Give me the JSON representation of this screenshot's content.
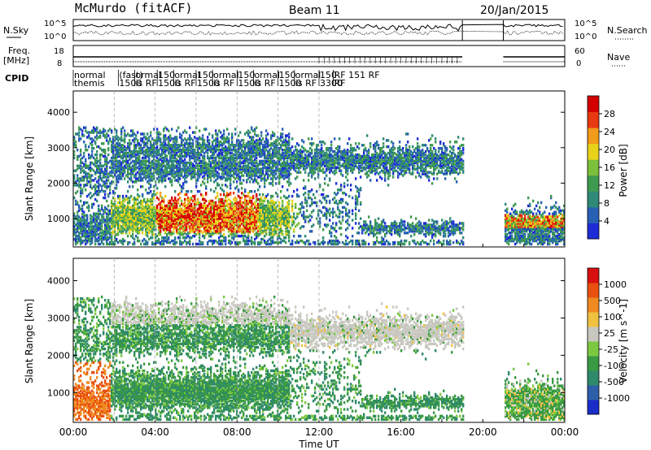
{
  "header": {
    "station": "McMurdo (fitACF)",
    "beam": "Beam 11",
    "date": "20/Jan/2015"
  },
  "top_panels": {
    "nsky_label": "N.Sky",
    "nsky_ticks_left": [
      "10^5",
      "10^0"
    ],
    "nsky_ticks_right": [
      "10^5",
      "10^0"
    ],
    "nsearch_label": "N.Search",
    "freq_label_line1": "Freq.",
    "freq_label_line2": "[MHz]",
    "freq_ticks": [
      "18",
      "8"
    ],
    "nave_label": "Nave",
    "nave_ticks": [
      "60",
      "0"
    ],
    "cpid_label": "CPID",
    "cpid_entries": [
      {
        "t": 0.0,
        "line1": "normal",
        "line2": "themis"
      },
      {
        "t": 2.2,
        "line1": "(fast)",
        "line2": "1500"
      },
      {
        "t": 3.0,
        "line1": "ormal",
        "line2": "is RF"
      },
      {
        "t": 4.1,
        "line1": "150",
        "line2": "1500"
      },
      {
        "t": 4.9,
        "line1": "ormal",
        "line2": "is RF"
      },
      {
        "t": 6.0,
        "line1": "150",
        "line2": "1500"
      },
      {
        "t": 6.8,
        "line1": "ormal",
        "line2": "is RF"
      },
      {
        "t": 8.0,
        "line1": "150",
        "line2": "1500"
      },
      {
        "t": 8.8,
        "line1": "ormal",
        "line2": "is RF"
      },
      {
        "t": 10.0,
        "line1": "150",
        "line2": "1500"
      },
      {
        "t": 10.8,
        "line1": "ormal",
        "line2": "is RF"
      },
      {
        "t": 12.0,
        "line1": "150",
        "line2": "3300"
      },
      {
        "t": 12.7,
        "line1": "RF  151  RF",
        "line2": "RF"
      }
    ]
  },
  "chart_data": [
    {
      "type": "heatmap",
      "title": "Power",
      "ylabel": "Slant Range [km]",
      "ylim": [
        200,
        4600
      ],
      "yticks": [
        "1000",
        "2000",
        "3000",
        "4000"
      ],
      "colorbar_label": "Power [dB]",
      "colorbar_ticks": [
        "4",
        "8",
        "12",
        "16",
        "20",
        "24",
        "28"
      ],
      "colors": [
        "#1e2bd6",
        "#2860b4",
        "#2f8a78",
        "#3f9a4f",
        "#7cbf3a",
        "#e8d21a",
        "#f29a1a",
        "#e83a12",
        "#d40000"
      ],
      "regions": [
        {
          "t0": 0.0,
          "t1": 1.8,
          "r0": 350,
          "r1": 3500,
          "level": "mixed"
        },
        {
          "t0": 1.8,
          "t1": 10.5,
          "r0": 350,
          "r1": 3500,
          "level": "strong"
        },
        {
          "t0": 10.5,
          "t1": 19.0,
          "r0": 600,
          "r1": 3200,
          "level": "weak"
        },
        {
          "t0": 21.0,
          "t1": 24.0,
          "r0": 300,
          "r1": 1300,
          "level": "strong"
        }
      ]
    },
    {
      "type": "heatmap",
      "title": "Velocity",
      "xlabel": "Time UT",
      "ylabel": "Slant Range [km]",
      "ylim": [
        200,
        4600
      ],
      "yticks": [
        "1000",
        "2000",
        "3000",
        "4000"
      ],
      "xticks": [
        "00:00",
        "04:00",
        "08:00",
        "12:00",
        "16:00",
        "20:00",
        "00:00"
      ],
      "xlim": [
        0,
        24
      ],
      "colorbar_label": "Velocity [m s^-1]",
      "colorbar_ticks": [
        "1000",
        "500",
        "100",
        "25",
        "-25",
        "-100",
        "-500",
        "-1000"
      ],
      "colors": [
        "#1a2dc8",
        "#2c5fa8",
        "#2f8a6a",
        "#3a9a44",
        "#7cc840",
        "#c8c8c0",
        "#f0c040",
        "#f08a20",
        "#e85010",
        "#d81010"
      ],
      "data_gap_hours": [
        19.0,
        21.0
      ]
    }
  ]
}
